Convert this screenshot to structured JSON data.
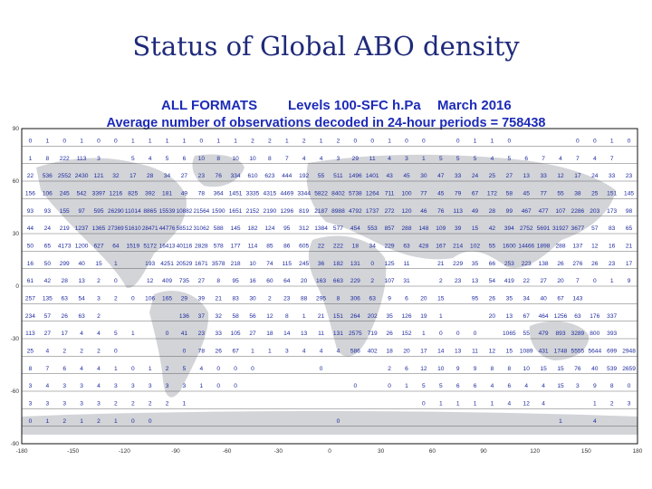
{
  "slide": {
    "title": "Status of Global ABO density"
  },
  "map": {
    "header": {
      "formats": "ALL FORMATS",
      "levels": "Levels 100-SFC h.Pa",
      "date": "March 2016",
      "subtitle": "Average number of observations decoded in 24-hour periods = 758438"
    },
    "lat_ticks": [
      "90",
      "60",
      "30",
      "0",
      "-30",
      "-60",
      "-90"
    ],
    "lon_ticks": [
      "-180",
      "-150",
      "-120",
      "-90",
      "-60",
      "-30",
      "0",
      "30",
      "60",
      "90",
      "120",
      "150",
      "180"
    ],
    "grid": {
      "columns": 36,
      "rows": [
        [
          "0",
          "1",
          "0",
          "1",
          "0",
          "0",
          "1",
          "1",
          "1",
          "1",
          "0",
          "1",
          "1",
          "2",
          "2",
          "1",
          "2",
          "1",
          "2",
          "0",
          "0",
          "1",
          "0",
          "0",
          "",
          "0",
          "1",
          "1",
          "0",
          "",
          "",
          "",
          "0",
          "0",
          "1",
          "0"
        ],
        [
          "1",
          "8",
          "222",
          "113",
          "3",
          "",
          "5",
          "4",
          "5",
          "6",
          "10",
          "8",
          "10",
          "10",
          "8",
          "7",
          "4",
          "4",
          "3",
          "29",
          "11",
          "4",
          "3",
          "1",
          "5",
          "5",
          "5",
          "4",
          "5",
          "6",
          "7",
          "4",
          "7",
          "4",
          "7",
          ""
        ],
        [
          "22",
          "536",
          "2552",
          "2430",
          "121",
          "32",
          "17",
          "28",
          "34",
          "27",
          "23",
          "76",
          "334",
          "610",
          "623",
          "444",
          "192",
          "55",
          "511",
          "1496",
          "1401",
          "43",
          "45",
          "30",
          "47",
          "33",
          "24",
          "25",
          "27",
          "13",
          "33",
          "12",
          "17",
          "24",
          "33",
          "23"
        ],
        [
          "156",
          "106",
          "245",
          "542",
          "3397",
          "1216",
          "825",
          "392",
          "181",
          "49",
          "78",
          "364",
          "1451",
          "3335",
          "4315",
          "4469",
          "3344",
          "5822",
          "8402",
          "5738",
          "1264",
          "711",
          "100",
          "77",
          "45",
          "79",
          "67",
          "172",
          "58",
          "45",
          "77",
          "55",
          "38",
          "25",
          "151",
          "145"
        ],
        [
          "93",
          "93",
          "155",
          "97",
          "595",
          "26290",
          "11014",
          "8865",
          "15539",
          "10882",
          "21564",
          "1590",
          "1651",
          "2152",
          "2190",
          "1296",
          "819",
          "2187",
          "8988",
          "4792",
          "1737",
          "272",
          "120",
          "46",
          "76",
          "113",
          "49",
          "28",
          "99",
          "467",
          "477",
          "107",
          "2286",
          "203",
          "173",
          "98"
        ],
        [
          "44",
          "24",
          "219",
          "1237",
          "1365",
          "27369",
          "51610",
          "28471",
          "44776",
          "58512",
          "31062",
          "588",
          "145",
          "182",
          "124",
          "95",
          "312",
          "1384",
          "577",
          "454",
          "553",
          "857",
          "288",
          "148",
          "109",
          "39",
          "15",
          "42",
          "394",
          "2752",
          "5691",
          "31927",
          "3677",
          "57",
          "83",
          "65"
        ],
        [
          "50",
          "65",
          "4173",
          "1200",
          "627",
          "64",
          "1519",
          "5172",
          "16413",
          "40116",
          "2828",
          "578",
          "177",
          "114",
          "85",
          "86",
          "605",
          "22",
          "222",
          "18",
          "34",
          "229",
          "63",
          "428",
          "167",
          "214",
          "102",
          "55",
          "1600",
          "14466",
          "1898",
          "288",
          "137",
          "12",
          "16",
          "21"
        ],
        [
          "16",
          "50",
          "299",
          "40",
          "15",
          "1",
          "",
          "193",
          "4251",
          "20529",
          "1671",
          "3578",
          "218",
          "10",
          "74",
          "115",
          "245",
          "36",
          "182",
          "131",
          "0",
          "125",
          "11",
          "",
          "21",
          "229",
          "35",
          "66",
          "253",
          "223",
          "138",
          "26",
          "276",
          "26",
          "23",
          "17"
        ],
        [
          "61",
          "42",
          "28",
          "13",
          "2",
          "0",
          "",
          "12",
          "409",
          "735",
          "27",
          "8",
          "95",
          "16",
          "60",
          "64",
          "20",
          "163",
          "663",
          "229",
          "2",
          "107",
          "31",
          "",
          "2",
          "23",
          "13",
          "54",
          "419",
          "22",
          "27",
          "20",
          "7",
          "0",
          "1",
          "9"
        ],
        [
          "257",
          "135",
          "63",
          "54",
          "3",
          "2",
          "0",
          "106",
          "165",
          "29",
          "39",
          "21",
          "83",
          "30",
          "2",
          "23",
          "88",
          "295",
          "8",
          "306",
          "63",
          "9",
          "6",
          "20",
          "15",
          "",
          "95",
          "26",
          "35",
          "34",
          "40",
          "67",
          "143",
          "",
          "",
          ""
        ],
        [
          "234",
          "57",
          "26",
          "63",
          "2",
          "",
          "",
          "",
          "",
          "136",
          "37",
          "32",
          "58",
          "56",
          "12",
          "8",
          "1",
          "21",
          "151",
          "264",
          "202",
          "35",
          "126",
          "19",
          "1",
          "",
          "",
          "20",
          "13",
          "67",
          "464",
          "1256",
          "63",
          "176",
          "337",
          ""
        ],
        [
          "113",
          "27",
          "17",
          "4",
          "4",
          "5",
          "1",
          "",
          "0",
          "41",
          "23",
          "33",
          "105",
          "27",
          "18",
          "14",
          "13",
          "11",
          "131",
          "2575",
          "719",
          "26",
          "152",
          "1",
          "0",
          "0",
          "0",
          "",
          "1065",
          "55",
          "479",
          "893",
          "3289",
          "800",
          "393",
          ""
        ],
        [
          "25",
          "4",
          "2",
          "2",
          "2",
          "0",
          "",
          "",
          "",
          "0",
          "78",
          "26",
          "67",
          "1",
          "1",
          "3",
          "4",
          "4",
          "4",
          "586",
          "402",
          "18",
          "20",
          "17",
          "14",
          "13",
          "11",
          "12",
          "15",
          "1089",
          "431",
          "1748",
          "5555",
          "5644",
          "699",
          "2948"
        ],
        [
          "8",
          "7",
          "6",
          "4",
          "4",
          "1",
          "0",
          "1",
          "2",
          "5",
          "4",
          "0",
          "0",
          "0",
          "",
          "",
          "",
          "0",
          "",
          "",
          "",
          "2",
          "6",
          "12",
          "10",
          "9",
          "9",
          "8",
          "8",
          "10",
          "15",
          "15",
          "76",
          "40",
          "539",
          "2659"
        ],
        [
          "3",
          "4",
          "3",
          "3",
          "4",
          "3",
          "3",
          "3",
          "3",
          "3",
          "1",
          "0",
          "0",
          "",
          "",
          "",
          "",
          "",
          "",
          "0",
          "",
          "0",
          "1",
          "5",
          "5",
          "6",
          "6",
          "4",
          "6",
          "4",
          "4",
          "15",
          "3",
          "9",
          "8",
          "0"
        ],
        [
          "3",
          "3",
          "3",
          "3",
          "3",
          "2",
          "2",
          "2",
          "2",
          "1",
          "",
          "",
          "",
          "",
          "",
          "",
          "",
          "",
          "",
          "",
          "",
          "",
          "",
          "0",
          "1",
          "1",
          "1",
          "1",
          "4",
          "12",
          "4",
          "",
          "",
          "1",
          "2",
          "3"
        ],
        [
          "0",
          "1",
          "2",
          "1",
          "2",
          "1",
          "0",
          "0",
          "",
          "",
          "",
          "",
          "",
          "",
          "",
          "",
          "",
          "",
          "0",
          "",
          "",
          "",
          "",
          "",
          "",
          "",
          "",
          "",
          "",
          "",
          "",
          "1",
          "",
          "4",
          "",
          ""
        ]
      ]
    }
  }
}
